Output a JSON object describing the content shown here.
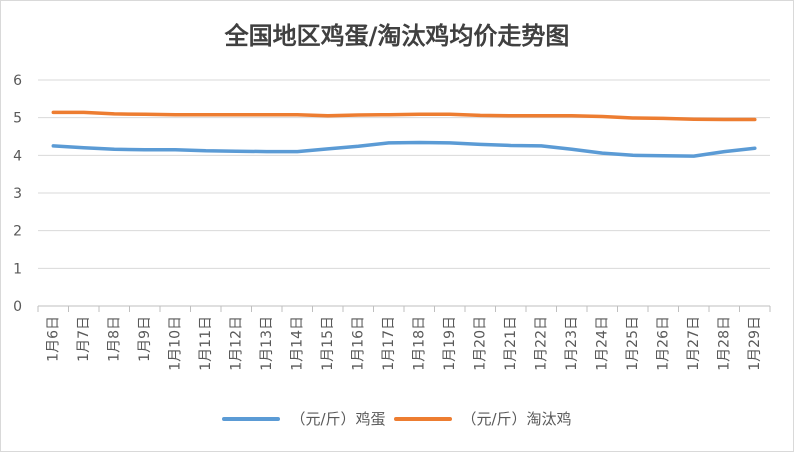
{
  "chart_data": {
    "type": "line",
    "title": "全国地区鸡蛋/淘汰鸡均价走势图",
    "categories": [
      "1月6日",
      "1月7日",
      "1月8日",
      "1月9日",
      "1月10日",
      "1月11日",
      "1月12日",
      "1月13日",
      "1月14日",
      "1月15日",
      "1月16日",
      "1月17日",
      "1月18日",
      "1月19日",
      "1月20日",
      "1月21日",
      "1月22日",
      "1月23日",
      "1月24日",
      "1月25日",
      "1月26日",
      "1月27日",
      "1月28日",
      "1月29日"
    ],
    "ylim": [
      0,
      6
    ],
    "yticks": [
      "0",
      "1",
      "2",
      "3",
      "4",
      "5",
      "6"
    ],
    "grid": true,
    "legend_position": "bottom",
    "series": [
      {
        "name": "（元/斤）鸡蛋",
        "color": "#5b9bd5",
        "values": [
          4.25,
          4.2,
          4.16,
          4.15,
          4.15,
          4.12,
          4.11,
          4.1,
          4.1,
          4.17,
          4.24,
          4.33,
          4.34,
          4.33,
          4.29,
          4.26,
          4.25,
          4.16,
          4.06,
          4.0,
          3.99,
          3.98,
          4.1,
          4.19
        ]
      },
      {
        "name": "（元/斤）淘汰鸡",
        "color": "#ed7d31",
        "values": [
          5.14,
          5.14,
          5.1,
          5.09,
          5.08,
          5.08,
          5.08,
          5.08,
          5.08,
          5.05,
          5.07,
          5.08,
          5.09,
          5.09,
          5.06,
          5.05,
          5.05,
          5.05,
          5.03,
          4.99,
          4.98,
          4.96,
          4.95,
          4.95
        ]
      }
    ]
  }
}
